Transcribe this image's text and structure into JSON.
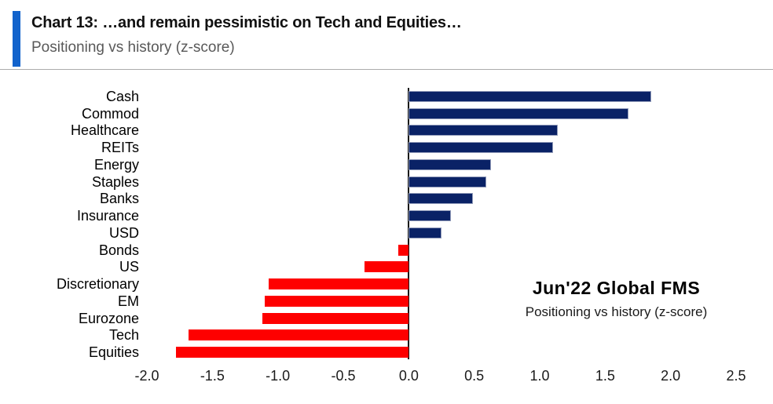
{
  "header": {
    "title": "Chart 13: …and remain pessimistic on Tech and Equities…",
    "subtitle": "Positioning vs history (z-score)",
    "accent_color": "#1263cc",
    "divider_color": "#ababab"
  },
  "annotation": {
    "line1": "Jun'22 Global FMS",
    "line2": "Positioning vs history (z-score)"
  },
  "chart_data": {
    "type": "bar",
    "orientation": "horizontal",
    "title": "Chart 13: …and remain pessimistic on Tech and Equities…",
    "subtitle": "Positioning vs history (z-score)",
    "xlabel": "",
    "ylabel": "",
    "categories": [
      "Cash",
      "Commod",
      "Healthcare",
      "REITs",
      "Energy",
      "Staples",
      "Banks",
      "Insurance",
      "USD",
      "Bonds",
      "US",
      "Discretionary",
      "EM",
      "Eurozone",
      "Tech",
      "Equities"
    ],
    "values": [
      1.85,
      1.68,
      1.14,
      1.1,
      0.63,
      0.59,
      0.49,
      0.32,
      0.25,
      -0.08,
      -0.34,
      -1.07,
      -1.1,
      -1.12,
      -1.68,
      -1.78
    ],
    "xlim": [
      -2.0,
      2.5
    ],
    "x_ticks": [
      -2.0,
      -1.5,
      -1.0,
      -0.5,
      0.0,
      0.5,
      1.0,
      1.5,
      2.0,
      2.5
    ],
    "x_tick_labels": [
      "-2.0",
      "-1.5",
      "-1.0",
      "-0.5",
      "0.0",
      "0.5",
      "1.0",
      "1.5",
      "2.0",
      "2.5"
    ],
    "positive_color": "#0a2266",
    "negative_color": "#fe0000",
    "grid": false,
    "legend": "none"
  }
}
